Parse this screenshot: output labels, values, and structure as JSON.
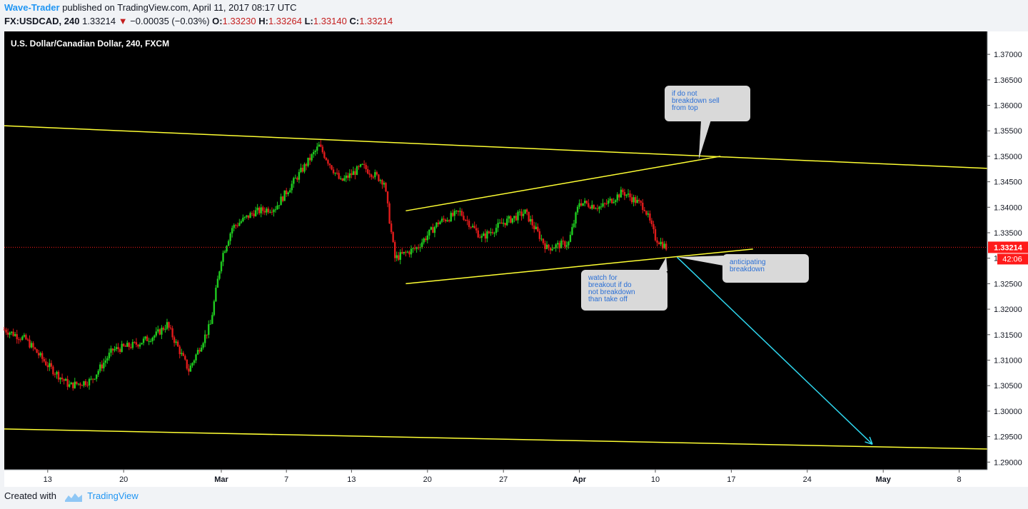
{
  "header": {
    "author": "Wave-Trader",
    "published_text": "published on TradingView.com, April 11, 2017 08:17 UTC",
    "symbol": "FX:USDCAD, 240",
    "last": "1.33214",
    "down_arrow": "▼",
    "change": "−0.00035 (−0.03%)",
    "o_label": "O:",
    "o_value": "1.33230",
    "h_label": "H:",
    "h_value": "1.33264",
    "l_label": "L:",
    "l_value": "1.33140",
    "c_label": "C:",
    "c_value": "1.33214"
  },
  "footer": {
    "created_with": "Created with",
    "brand": "TradingView"
  },
  "colors": {
    "background": "#000000",
    "up_candle": "#1fcc1f",
    "down_candle": "#e01b1b",
    "trendline": "#ffff33",
    "projection_arrow": "#2fd8f0",
    "price_label": "#ff1a1a",
    "callout_bg": "#d9d9d9",
    "callout_text": "#2a6fd6"
  },
  "chart_data": {
    "type": "candlestick",
    "title": "U.S. Dollar/Canadian Dollar, 240, FXCM",
    "interval": "240",
    "ylim": [
      1.2885,
      1.3745
    ],
    "y_ticks": [
      "1.37000",
      "1.36500",
      "1.36000",
      "1.35500",
      "1.35000",
      "1.34500",
      "1.34000",
      "1.33500",
      "1.33000",
      "1.32500",
      "1.32000",
      "1.31500",
      "1.31000",
      "1.30500",
      "1.30000",
      "1.29500",
      "1.29000"
    ],
    "x_ticks": [
      "13",
      "20",
      "Mar",
      "7",
      "13",
      "20",
      "27",
      "Apr",
      "10",
      "17",
      "24",
      "May",
      "8"
    ],
    "last_price_label": "1.33214",
    "countdown_label": "42:06",
    "price_path": [
      {
        "date": "2017-02-09",
        "price": 1.316
      },
      {
        "date": "2017-02-11",
        "price": 1.314
      },
      {
        "date": "2017-02-13",
        "price": 1.309
      },
      {
        "date": "2017-02-15",
        "price": 1.305
      },
      {
        "date": "2017-02-17",
        "price": 1.306
      },
      {
        "date": "2017-02-19",
        "price": 1.312
      },
      {
        "date": "2017-02-21",
        "price": 1.313
      },
      {
        "date": "2017-02-23",
        "price": 1.315
      },
      {
        "date": "2017-02-24",
        "price": 1.317
      },
      {
        "date": "2017-02-26",
        "price": 1.308
      },
      {
        "date": "2017-02-28",
        "price": 1.317
      },
      {
        "date": "2017-03-01",
        "price": 1.33
      },
      {
        "date": "2017-03-02",
        "price": 1.336
      },
      {
        "date": "2017-03-04",
        "price": 1.339
      },
      {
        "date": "2017-03-06",
        "price": 1.34
      },
      {
        "date": "2017-03-08",
        "price": 1.346
      },
      {
        "date": "2017-03-10",
        "price": 1.352
      },
      {
        "date": "2017-03-12",
        "price": 1.345
      },
      {
        "date": "2017-03-14",
        "price": 1.348
      },
      {
        "date": "2017-03-16",
        "price": 1.345
      },
      {
        "date": "2017-03-17",
        "price": 1.33
      },
      {
        "date": "2017-03-19",
        "price": 1.332
      },
      {
        "date": "2017-03-21",
        "price": 1.337
      },
      {
        "date": "2017-03-23",
        "price": 1.339
      },
      {
        "date": "2017-03-25",
        "price": 1.334
      },
      {
        "date": "2017-03-27",
        "price": 1.337
      },
      {
        "date": "2017-03-29",
        "price": 1.339
      },
      {
        "date": "2017-03-31",
        "price": 1.332
      },
      {
        "date": "2017-04-02",
        "price": 1.333
      },
      {
        "date": "2017-04-03",
        "price": 1.341
      },
      {
        "date": "2017-04-05",
        "price": 1.34
      },
      {
        "date": "2017-04-07",
        "price": 1.343
      },
      {
        "date": "2017-04-09",
        "price": 1.34
      },
      {
        "date": "2017-04-10",
        "price": 1.334
      },
      {
        "date": "2017-04-11",
        "price": 1.3321
      }
    ],
    "drawings": {
      "lines": [
        {
          "from": {
            "date": "2017-02-09",
            "price": 1.356
          },
          "to": {
            "date": "2017-05-12",
            "price": 1.3475
          }
        },
        {
          "from": {
            "date": "2017-02-09",
            "price": 1.2965
          },
          "to": {
            "date": "2017-05-12",
            "price": 1.2925
          }
        },
        {
          "from": {
            "date": "2017-03-18",
            "price": 1.3393
          },
          "to": {
            "date": "2017-04-16",
            "price": 1.35
          }
        },
        {
          "from": {
            "date": "2017-03-18",
            "price": 1.325
          },
          "to": {
            "date": "2017-04-19",
            "price": 1.3318
          }
        }
      ],
      "arrow": {
        "from": {
          "date": "2017-04-12",
          "price": 1.3302
        },
        "to": {
          "date": "2017-04-30",
          "price": 1.2935
        }
      },
      "callouts": [
        {
          "text": [
            "if do not",
            "breakdown sell",
            "from top"
          ],
          "tail": {
            "date": "2017-04-14",
            "price": 1.3494
          }
        },
        {
          "text": [
            "watch for",
            "breakout if do",
            "not breakdown",
            "than take off"
          ],
          "tail": {
            "date": "2017-04-11",
            "price": 1.3302
          }
        },
        {
          "text": [
            "anticipating",
            "breakdown"
          ],
          "tail": {
            "date": "2017-04-12",
            "price": 1.3302
          }
        }
      ]
    }
  }
}
